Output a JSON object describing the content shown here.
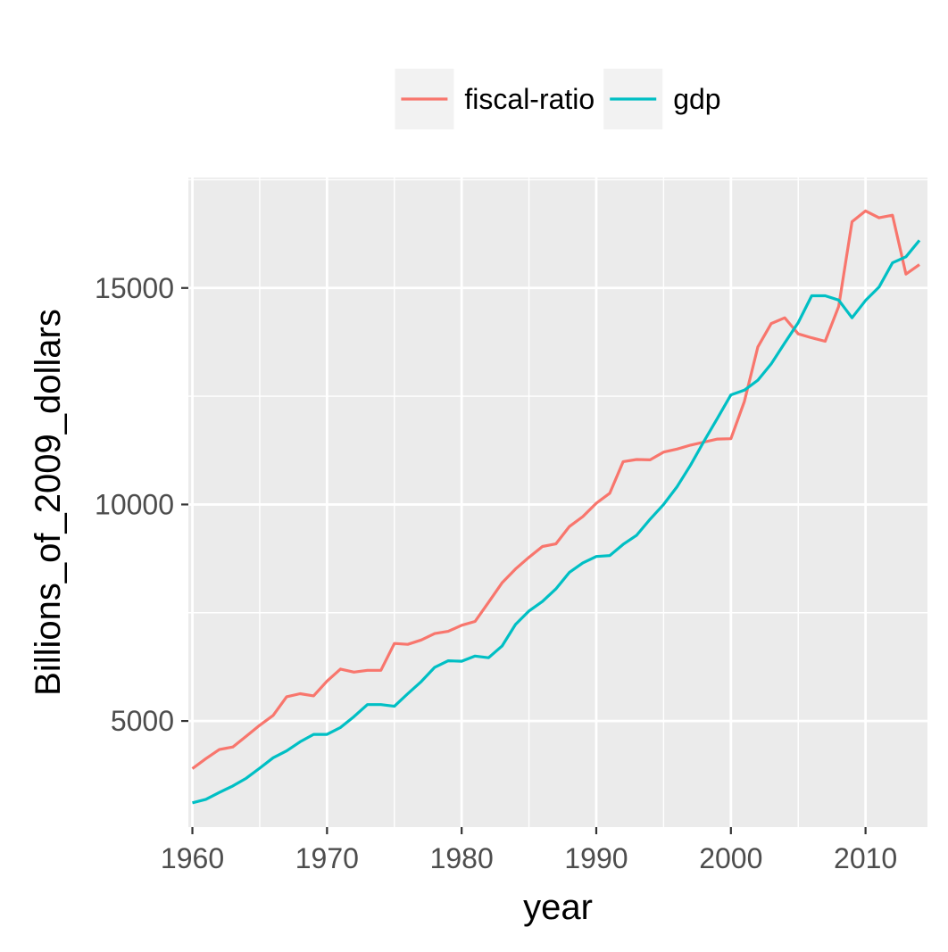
{
  "chart_data": {
    "type": "line",
    "title": "",
    "xlabel": "year",
    "ylabel": "Billions_of_2009_dollars",
    "xlim": [
      1959.7,
      2014.6
    ],
    "ylim": [
      2550,
      17550
    ],
    "x_ticks": [
      1960,
      1970,
      1980,
      1990,
      2000,
      2010
    ],
    "y_ticks": [
      5000,
      10000,
      15000
    ],
    "grid": true,
    "legend_position": "top",
    "x": [
      1960,
      1961,
      1962,
      1963,
      1964,
      1965,
      1966,
      1967,
      1968,
      1969,
      1970,
      1971,
      1972,
      1973,
      1974,
      1975,
      1976,
      1977,
      1978,
      1979,
      1980,
      1981,
      1982,
      1983,
      1984,
      1985,
      1986,
      1987,
      1988,
      1989,
      1990,
      1991,
      1992,
      1993,
      1994,
      1995,
      1996,
      1997,
      1998,
      1999,
      2000,
      2001,
      2002,
      2003,
      2004,
      2005,
      2006,
      2007,
      2008,
      2009,
      2010,
      2011,
      2012,
      2013,
      2014
    ],
    "series": [
      {
        "name": "fiscal-ratio",
        "color": "#F8766D",
        "values": [
          3900,
          4130,
          4340,
          4400,
          4650,
          4900,
          5130,
          5560,
          5630,
          5580,
          5920,
          6200,
          6130,
          6170,
          6170,
          6790,
          6770,
          6870,
          7020,
          7070,
          7210,
          7300,
          7740,
          8190,
          8510,
          8780,
          9030,
          9090,
          9490,
          9720,
          10030,
          10260,
          10990,
          11040,
          11030,
          11210,
          11280,
          11370,
          11440,
          11510,
          11520,
          12380,
          13640,
          14180,
          14310,
          13940,
          13850,
          13770,
          14570,
          16530,
          16780,
          16620,
          16680,
          15320,
          15540
        ]
      },
      {
        "name": "gdp",
        "color": "#00BFC4",
        "values": [
          3110,
          3190,
          3350,
          3500,
          3680,
          3910,
          4150,
          4310,
          4520,
          4690,
          4690,
          4850,
          5100,
          5380,
          5380,
          5340,
          5630,
          5910,
          6240,
          6390,
          6380,
          6500,
          6460,
          6730,
          7230,
          7540,
          7760,
          8050,
          8430,
          8650,
          8800,
          8820,
          9080,
          9290,
          9660,
          10000,
          10410,
          10910,
          11460,
          11990,
          12530,
          12640,
          12870,
          13250,
          13730,
          14200,
          14820,
          14820,
          14720,
          14310,
          14710,
          15020,
          15580,
          15720,
          16100
        ]
      }
    ]
  }
}
